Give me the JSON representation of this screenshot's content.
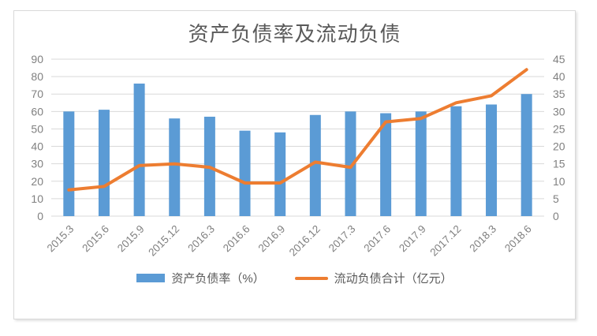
{
  "chart_data": {
    "type": "combo_bar_line",
    "title": "资产负债率及流动负债",
    "categories": [
      "2015.3",
      "2015.6",
      "2015.9",
      "2015.12",
      "2016.3",
      "2016.6",
      "2016.9",
      "2016.12",
      "2017.3",
      "2017.6",
      "2017.9",
      "2017.12",
      "2018.3",
      "2018.6"
    ],
    "series": [
      {
        "name": "资产负债率（%）",
        "type": "bar",
        "axis": "left",
        "color": "#5B9BD5",
        "values": [
          60,
          61,
          76,
          56,
          57,
          49,
          48,
          58,
          60,
          59,
          60,
          63,
          64,
          70
        ]
      },
      {
        "name": "流动负债合计（亿元）",
        "type": "line",
        "axis": "right",
        "color": "#ED7D31",
        "values": [
          7.5,
          8.5,
          14.5,
          15,
          14,
          9.5,
          9.5,
          15.5,
          14,
          27,
          28,
          32.5,
          34.5,
          42
        ]
      }
    ],
    "left_axis": {
      "min": 0,
      "max": 90,
      "ticks": [
        0,
        10,
        20,
        30,
        40,
        50,
        60,
        70,
        80,
        90
      ]
    },
    "right_axis": {
      "min": 0,
      "max": 45,
      "ticks": [
        0,
        5,
        10,
        15,
        20,
        25,
        30,
        35,
        40,
        45
      ]
    },
    "grid": true,
    "legend_position": "bottom",
    "colors": {
      "bar": "#5B9BD5",
      "line": "#ED7D31",
      "gridline": "#D9D9D9",
      "axis_text": "#808080",
      "title_text": "#595959",
      "legend_text": "#595959",
      "card_border": "#D9D9D9"
    }
  }
}
